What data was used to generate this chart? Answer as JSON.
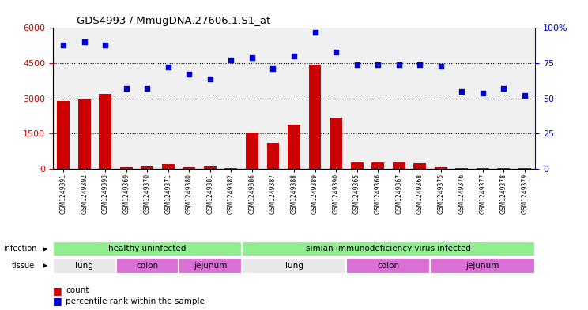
{
  "title": "GDS4993 / MmugDNA.27606.1.S1_at",
  "samples": [
    "GSM1249391",
    "GSM1249392",
    "GSM1249393",
    "GSM1249369",
    "GSM1249370",
    "GSM1249371",
    "GSM1249380",
    "GSM1249381",
    "GSM1249382",
    "GSM1249386",
    "GSM1249387",
    "GSM1249388",
    "GSM1249389",
    "GSM1249390",
    "GSM1249365",
    "GSM1249366",
    "GSM1249367",
    "GSM1249368",
    "GSM1249375",
    "GSM1249376",
    "GSM1249377",
    "GSM1249378",
    "GSM1249379"
  ],
  "counts": [
    2900,
    3000,
    3200,
    60,
    120,
    200,
    80,
    100,
    30,
    1550,
    1100,
    1900,
    4450,
    2200,
    260,
    260,
    280,
    250,
    90,
    50,
    30,
    30,
    30
  ],
  "percentiles": [
    88,
    90,
    88,
    57,
    57,
    72,
    67,
    64,
    77,
    79,
    71,
    80,
    97,
    83,
    74,
    74,
    74,
    74,
    73,
    55,
    54,
    57,
    52
  ],
  "infection_groups": [
    {
      "label": "healthy uninfected",
      "start": 0,
      "end": 8,
      "color": "#90EE90"
    },
    {
      "label": "simian immunodeficiency virus infected",
      "start": 9,
      "end": 22,
      "color": "#90EE90"
    }
  ],
  "tissue_groups": [
    {
      "label": "lung",
      "start": 0,
      "end": 2,
      "color": "#DCDCDC"
    },
    {
      "label": "colon",
      "start": 3,
      "end": 5,
      "color": "#DA70D6"
    },
    {
      "label": "jejunum",
      "start": 6,
      "end": 8,
      "color": "#DA70D6"
    },
    {
      "label": "lung",
      "start": 9,
      "end": 13,
      "color": "#DCDCDC"
    },
    {
      "label": "colon",
      "start": 14,
      "end": 17,
      "color": "#DA70D6"
    },
    {
      "label": "jejunum",
      "start": 18,
      "end": 22,
      "color": "#DA70D6"
    }
  ],
  "ylim_left": [
    0,
    6000
  ],
  "ylim_right": [
    0,
    100
  ],
  "yticks_left": [
    0,
    1500,
    3000,
    4500,
    6000
  ],
  "yticks_right": [
    0,
    25,
    50,
    75,
    100
  ],
  "bar_color": "#CC0000",
  "dot_color": "#0000CC",
  "plot_bg": "#F0F0F0",
  "grid_color": "black",
  "right_ylabel_suffix": "%"
}
